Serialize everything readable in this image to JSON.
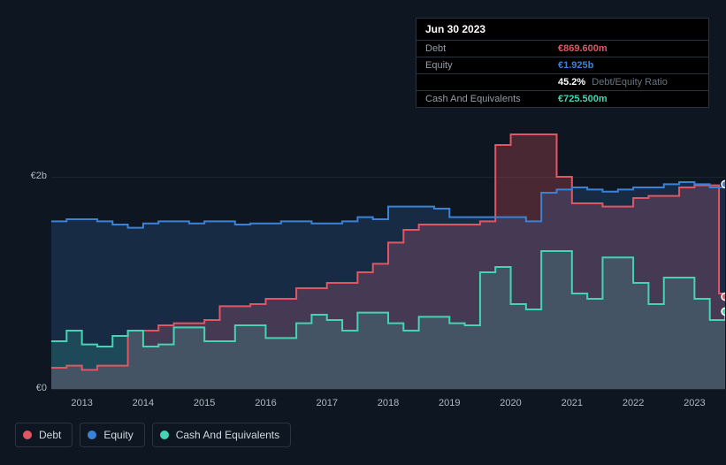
{
  "chart": {
    "type": "area",
    "background_color": "#0e1621",
    "plot_background": "#0e1621",
    "grid_color": "#1a2530",
    "text_color": "#b0b8c0",
    "ylim": [
      0,
      2.5
    ],
    "yticks": [
      {
        "value": 0,
        "label": "€0"
      },
      {
        "value": 2,
        "label": "€2b"
      }
    ],
    "xlim": [
      2012.5,
      2023.5
    ],
    "xticks": [
      2013,
      2014,
      2015,
      2016,
      2017,
      2018,
      2019,
      2020,
      2021,
      2022,
      2023
    ],
    "series": [
      {
        "name": "Debt",
        "stroke_color": "#e25563",
        "fill_color": "rgba(226,85,99,0.28)",
        "line_width": 2,
        "data": [
          [
            2012.5,
            0.2
          ],
          [
            2012.75,
            0.22
          ],
          [
            2013.0,
            0.18
          ],
          [
            2013.25,
            0.22
          ],
          [
            2013.5,
            0.22
          ],
          [
            2013.75,
            0.55
          ],
          [
            2014.0,
            0.55
          ],
          [
            2014.25,
            0.6
          ],
          [
            2014.5,
            0.62
          ],
          [
            2014.75,
            0.62
          ],
          [
            2015.0,
            0.65
          ],
          [
            2015.25,
            0.78
          ],
          [
            2015.5,
            0.78
          ],
          [
            2015.75,
            0.8
          ],
          [
            2016.0,
            0.85
          ],
          [
            2016.25,
            0.85
          ],
          [
            2016.5,
            0.95
          ],
          [
            2016.75,
            0.95
          ],
          [
            2017.0,
            1.0
          ],
          [
            2017.25,
            1.0
          ],
          [
            2017.5,
            1.1
          ],
          [
            2017.75,
            1.18
          ],
          [
            2018.0,
            1.38
          ],
          [
            2018.25,
            1.5
          ],
          [
            2018.5,
            1.55
          ],
          [
            2018.75,
            1.55
          ],
          [
            2019.0,
            1.55
          ],
          [
            2019.25,
            1.55
          ],
          [
            2019.5,
            1.58
          ],
          [
            2019.75,
            2.3
          ],
          [
            2020.0,
            2.4
          ],
          [
            2020.25,
            2.4
          ],
          [
            2020.5,
            2.4
          ],
          [
            2020.75,
            2.0
          ],
          [
            2021.0,
            1.75
          ],
          [
            2021.25,
            1.75
          ],
          [
            2021.5,
            1.72
          ],
          [
            2021.75,
            1.72
          ],
          [
            2022.0,
            1.8
          ],
          [
            2022.25,
            1.82
          ],
          [
            2022.5,
            1.82
          ],
          [
            2022.75,
            1.9
          ],
          [
            2023.0,
            1.92
          ],
          [
            2023.25,
            1.92
          ],
          [
            2023.4,
            0.9
          ],
          [
            2023.5,
            0.87
          ]
        ]
      },
      {
        "name": "Equity",
        "stroke_color": "#3b82d6",
        "fill_color": "rgba(59,130,214,0.20)",
        "line_width": 2,
        "data": [
          [
            2012.5,
            1.58
          ],
          [
            2012.75,
            1.6
          ],
          [
            2013.0,
            1.6
          ],
          [
            2013.25,
            1.58
          ],
          [
            2013.5,
            1.55
          ],
          [
            2013.75,
            1.52
          ],
          [
            2014.0,
            1.56
          ],
          [
            2014.25,
            1.58
          ],
          [
            2014.5,
            1.58
          ],
          [
            2014.75,
            1.56
          ],
          [
            2015.0,
            1.58
          ],
          [
            2015.25,
            1.58
          ],
          [
            2015.5,
            1.55
          ],
          [
            2015.75,
            1.56
          ],
          [
            2016.0,
            1.56
          ],
          [
            2016.25,
            1.58
          ],
          [
            2016.5,
            1.58
          ],
          [
            2016.75,
            1.56
          ],
          [
            2017.0,
            1.56
          ],
          [
            2017.25,
            1.58
          ],
          [
            2017.5,
            1.62
          ],
          [
            2017.75,
            1.6
          ],
          [
            2018.0,
            1.72
          ],
          [
            2018.25,
            1.72
          ],
          [
            2018.5,
            1.72
          ],
          [
            2018.75,
            1.7
          ],
          [
            2019.0,
            1.62
          ],
          [
            2019.25,
            1.62
          ],
          [
            2019.5,
            1.62
          ],
          [
            2019.75,
            1.62
          ],
          [
            2020.0,
            1.62
          ],
          [
            2020.25,
            1.58
          ],
          [
            2020.5,
            1.85
          ],
          [
            2020.75,
            1.88
          ],
          [
            2021.0,
            1.9
          ],
          [
            2021.25,
            1.88
          ],
          [
            2021.5,
            1.86
          ],
          [
            2021.75,
            1.88
          ],
          [
            2022.0,
            1.9
          ],
          [
            2022.25,
            1.9
          ],
          [
            2022.5,
            1.93
          ],
          [
            2022.75,
            1.95
          ],
          [
            2023.0,
            1.93
          ],
          [
            2023.25,
            1.9
          ],
          [
            2023.5,
            1.93
          ]
        ]
      },
      {
        "name": "Cash And Equivalents",
        "stroke_color": "#45d4b3",
        "fill_color": "rgba(69,212,179,0.18)",
        "line_width": 2,
        "data": [
          [
            2012.5,
            0.45
          ],
          [
            2012.75,
            0.55
          ],
          [
            2013.0,
            0.42
          ],
          [
            2013.25,
            0.4
          ],
          [
            2013.5,
            0.5
          ],
          [
            2013.75,
            0.55
          ],
          [
            2014.0,
            0.4
          ],
          [
            2014.25,
            0.42
          ],
          [
            2014.5,
            0.58
          ],
          [
            2014.75,
            0.58
          ],
          [
            2015.0,
            0.45
          ],
          [
            2015.25,
            0.45
          ],
          [
            2015.5,
            0.6
          ],
          [
            2015.75,
            0.6
          ],
          [
            2016.0,
            0.48
          ],
          [
            2016.25,
            0.48
          ],
          [
            2016.5,
            0.62
          ],
          [
            2016.75,
            0.7
          ],
          [
            2017.0,
            0.65
          ],
          [
            2017.25,
            0.55
          ],
          [
            2017.5,
            0.72
          ],
          [
            2017.75,
            0.72
          ],
          [
            2018.0,
            0.62
          ],
          [
            2018.25,
            0.55
          ],
          [
            2018.5,
            0.68
          ],
          [
            2018.75,
            0.68
          ],
          [
            2019.0,
            0.62
          ],
          [
            2019.25,
            0.6
          ],
          [
            2019.5,
            1.1
          ],
          [
            2019.75,
            1.15
          ],
          [
            2020.0,
            0.8
          ],
          [
            2020.25,
            0.75
          ],
          [
            2020.5,
            1.3
          ],
          [
            2020.75,
            1.3
          ],
          [
            2021.0,
            0.9
          ],
          [
            2021.25,
            0.85
          ],
          [
            2021.5,
            1.24
          ],
          [
            2021.75,
            1.24
          ],
          [
            2022.0,
            1.0
          ],
          [
            2022.25,
            0.8
          ],
          [
            2022.5,
            1.05
          ],
          [
            2022.75,
            1.05
          ],
          [
            2023.0,
            0.85
          ],
          [
            2023.25,
            0.65
          ],
          [
            2023.5,
            0.73
          ]
        ]
      }
    ],
    "cursor_x": 2023.5,
    "endpoint_markers": [
      {
        "x": 2023.5,
        "y": 1.93,
        "color": "#3b82d6"
      },
      {
        "x": 2023.5,
        "y": 0.87,
        "color": "#e25563"
      },
      {
        "x": 2023.5,
        "y": 0.73,
        "color": "#45d4b3"
      }
    ]
  },
  "tooltip": {
    "date": "Jun 30 2023",
    "rows": [
      {
        "label": "Debt",
        "value": "€869.600m",
        "color": "#e25563"
      },
      {
        "label": "Equity",
        "value": "€1.925b",
        "color": "#3b82d6"
      },
      {
        "label": "",
        "value": "45.2%",
        "secondary": "Debt/Equity Ratio",
        "color": "#ffffff"
      },
      {
        "label": "Cash And Equivalents",
        "value": "€725.500m",
        "color": "#45d4b3"
      }
    ]
  },
  "legend": {
    "items": [
      {
        "label": "Debt",
        "color": "#e25563"
      },
      {
        "label": "Equity",
        "color": "#3b82d6"
      },
      {
        "label": "Cash And Equivalents",
        "color": "#45d4b3"
      }
    ]
  }
}
